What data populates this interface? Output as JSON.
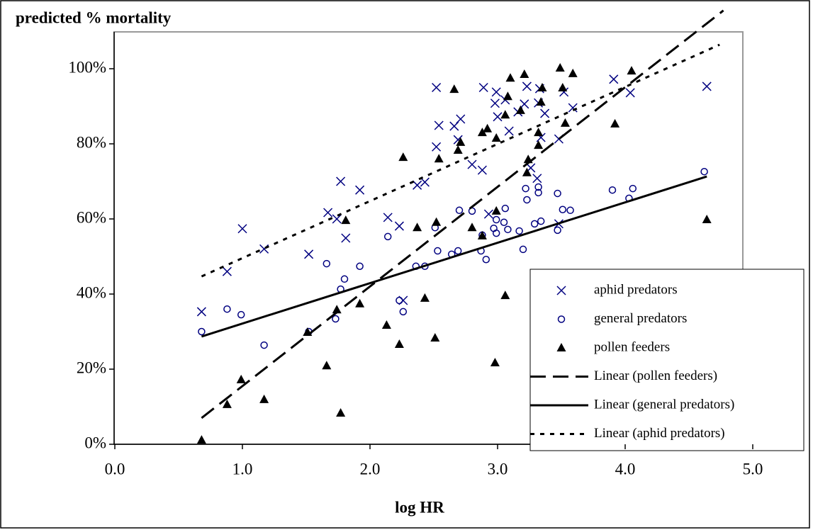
{
  "chart_data": {
    "type": "scatter",
    "title": "predicted % mortality",
    "x_label": "log HR",
    "xlim": [
      0,
      5
    ],
    "ylim": [
      0,
      110
    ],
    "xticks": [
      {
        "value": 0,
        "label": "0.0"
      },
      {
        "value": 1,
        "label": "1.0"
      },
      {
        "value": 2,
        "label": "2.0"
      },
      {
        "value": 3,
        "label": "3.0"
      },
      {
        "value": 4,
        "label": "4.0"
      },
      {
        "value": 5,
        "label": "5.0"
      }
    ],
    "yticks": [
      {
        "value": 0,
        "label": "0%"
      },
      {
        "value": 20,
        "label": "20%"
      },
      {
        "value": 40,
        "label": "40%"
      },
      {
        "value": 60,
        "label": "60%"
      },
      {
        "value": 80,
        "label": "80%"
      },
      {
        "value": 100,
        "label": "100%"
      }
    ],
    "legend": "lower right",
    "series": [
      {
        "name": "aphid predators",
        "color": "#000080",
        "marker": "x",
        "x": [
          0.68,
          0.88,
          1.0,
          1.17,
          1.52,
          1.67,
          1.74,
          1.77,
          1.81,
          1.92,
          2.14,
          2.23,
          2.26,
          2.37,
          2.43,
          2.52,
          2.52,
          2.54,
          2.71,
          2.69,
          2.66,
          2.8,
          2.88,
          2.89,
          2.93,
          2.98,
          2.99,
          3.0,
          3.06,
          3.09,
          3.16,
          3.21,
          3.23,
          3.26,
          3.32,
          3.31,
          3.34,
          3.33,
          3.37,
          3.48,
          3.48,
          3.52,
          3.59,
          3.91,
          4.04,
          4.64
        ],
        "values": [
          35.3,
          46,
          57.4,
          52,
          50.6,
          61.7,
          60,
          70,
          54.9,
          67.7,
          60.4,
          58.1,
          38.3,
          69,
          69.8,
          95,
          79.2,
          84.9,
          86.6,
          81.1,
          84.7,
          74.5,
          73,
          95,
          61.3,
          90.8,
          93.8,
          87.2,
          91.7,
          83.4,
          88.5,
          90.6,
          95.3,
          73.6,
          90.9,
          70.8,
          81.7,
          94.7,
          88.1,
          58.7,
          81.3,
          93.8,
          89.6,
          97.2,
          93.6,
          95.3
        ]
      },
      {
        "name": "general predators",
        "color": "#000080",
        "marker": "o",
        "x": [
          0.68,
          0.88,
          0.99,
          1.17,
          1.52,
          1.66,
          1.73,
          1.77,
          1.8,
          1.92,
          2.14,
          2.23,
          2.26,
          2.36,
          2.43,
          2.51,
          2.53,
          2.64,
          2.7,
          2.69,
          2.8,
          2.87,
          2.91,
          2.88,
          2.97,
          2.99,
          2.99,
          3.05,
          3.06,
          3.08,
          3.17,
          3.2,
          3.22,
          3.23,
          3.29,
          3.32,
          3.32,
          3.34,
          3.47,
          3.47,
          3.51,
          3.57,
          3.9,
          4.03,
          4.06,
          4.62
        ],
        "values": [
          30,
          36,
          34.5,
          26.4,
          30,
          48.1,
          33.4,
          41.3,
          44,
          47.4,
          55.3,
          38.3,
          35.3,
          47.4,
          47.4,
          57.7,
          51.5,
          50.6,
          62.3,
          51.5,
          62.1,
          51.5,
          49.2,
          55.7,
          57.5,
          59.8,
          56.2,
          59.1,
          62.8,
          57.2,
          56.8,
          51.9,
          68.1,
          65.1,
          58.7,
          67,
          68.5,
          59.4,
          66.8,
          57,
          62.5,
          62.3,
          67.7,
          65.5,
          68.1,
          72.6
        ]
      },
      {
        "name": "pollen feeders",
        "color": "#000000",
        "marker": "triangle",
        "x": [
          0.68,
          0.88,
          0.99,
          1.17,
          1.51,
          1.66,
          1.74,
          1.77,
          1.81,
          1.92,
          2.13,
          2.26,
          2.23,
          2.37,
          2.43,
          2.51,
          2.52,
          2.54,
          2.66,
          2.69,
          2.71,
          2.8,
          2.88,
          2.88,
          2.92,
          2.98,
          2.99,
          2.99,
          3.06,
          3.06,
          3.08,
          3.1,
          3.18,
          3.21,
          3.23,
          3.24,
          3.32,
          3.32,
          3.34,
          3.35,
          3.49,
          3.51,
          3.53,
          3.59,
          3.92,
          4.05,
          4.64
        ],
        "values": [
          1.1,
          10.6,
          17.2,
          11.9,
          29.8,
          20.9,
          35.8,
          8.3,
          59.6,
          37.4,
          31.7,
          76.4,
          26.6,
          57.7,
          38.9,
          28.3,
          59.1,
          76,
          94.5,
          78.3,
          80.4,
          57.7,
          55.5,
          83,
          84,
          21.7,
          81.5,
          62.1,
          39.6,
          87.7,
          92.6,
          97.5,
          88.9,
          98.5,
          72.3,
          75.8,
          83,
          79.6,
          91.1,
          94.9,
          100.2,
          94.9,
          85.5,
          98.7,
          85.3,
          99.4,
          59.8
        ]
      },
      {
        "name": "Linear (pollen feeders)",
        "color": "#000000",
        "line": "dashed",
        "x": [
          0.68,
          4.77
        ],
        "values": [
          7,
          115.5
        ]
      },
      {
        "name": "Linear (general predators)",
        "color": "#000000",
        "line": "solid",
        "x": [
          0.68,
          4.64
        ],
        "values": [
          28.7,
          71.3
        ]
      },
      {
        "name": "Linear (aphid predators)",
        "color": "#000000",
        "line": "dotted",
        "x": [
          0.68,
          4.74
        ],
        "values": [
          44.7,
          106.4
        ]
      }
    ]
  }
}
